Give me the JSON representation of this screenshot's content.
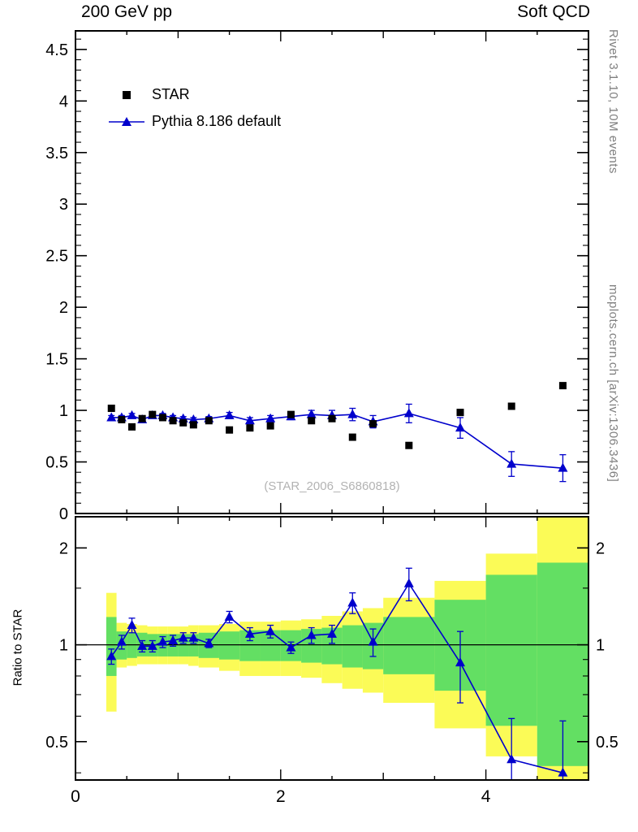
{
  "header": {
    "left_label": "200 GeV pp",
    "right_label": "Soft QCD"
  },
  "side_labels": {
    "rivet": "Rivet 3.1.10,  10M events",
    "mcplots": "mcplots.cern.ch [arXiv:1306.3436]"
  },
  "watermark": "(STAR_2006_S6860818)",
  "ratio_axis_label": "Ratio to STAR",
  "legend": {
    "items": [
      {
        "label": "STAR",
        "marker": "black-square"
      },
      {
        "label": "Pythia 8.186 default",
        "marker": "blue-triangle-line"
      }
    ]
  },
  "colors": {
    "star": "#000000",
    "pythia": "#0000cc",
    "band_yellow": "#fbfb57",
    "band_green": "#63df63",
    "reference_line": "#000000",
    "frame": "#000000",
    "watermark_text": "#b3b3b3",
    "side_text": "#808080"
  },
  "chart_data": [
    {
      "type": "scatter",
      "panel": "main",
      "xlim": [
        0,
        5
      ],
      "ylim": [
        0,
        4.68
      ],
      "xticks": [
        0,
        2,
        4
      ],
      "xtick_labels": [
        "0",
        "2",
        "4"
      ],
      "yticks": [
        0,
        0.5,
        1,
        1.5,
        2,
        2.5,
        3,
        3.5,
        4,
        4.5
      ],
      "ytick_labels": [
        "0",
        "0.5",
        "1",
        "1.5",
        "2",
        "2.5",
        "3",
        "3.5",
        "4",
        "4.5"
      ],
      "x": [
        0.35,
        0.45,
        0.55,
        0.65,
        0.75,
        0.85,
        0.95,
        1.05,
        1.15,
        1.3,
        1.5,
        1.7,
        1.9,
        2.1,
        2.3,
        2.5,
        2.7,
        2.9,
        3.25,
        3.75,
        4.25,
        4.75
      ],
      "series": [
        {
          "name": "STAR",
          "marker": "square",
          "color": "#000000",
          "values": [
            1.02,
            0.91,
            0.84,
            0.92,
            0.96,
            0.93,
            0.9,
            0.88,
            0.86,
            0.9,
            0.81,
            0.83,
            0.85,
            0.96,
            0.9,
            0.92,
            0.74,
            0.87,
            0.66,
            0.98,
            1.04,
            1.24
          ]
        },
        {
          "name": "Pythia 8.186 default",
          "marker": "triangle",
          "line": true,
          "color": "#0000cc",
          "values": [
            0.93,
            0.93,
            0.95,
            0.91,
            0.95,
            0.95,
            0.93,
            0.92,
            0.91,
            0.92,
            0.95,
            0.9,
            0.92,
            0.94,
            0.96,
            0.95,
            0.96,
            0.89,
            0.97,
            0.83,
            0.48,
            0.44
          ],
          "errors": [
            0.02,
            0.02,
            0.02,
            0.02,
            0.02,
            0.02,
            0.02,
            0.02,
            0.02,
            0.02,
            0.03,
            0.03,
            0.03,
            0.03,
            0.04,
            0.05,
            0.06,
            0.06,
            0.09,
            0.1,
            0.12,
            0.13
          ]
        }
      ]
    },
    {
      "type": "ratio",
      "panel": "ratio",
      "ylabel": "Ratio to STAR",
      "yscale": "log",
      "xlim": [
        0,
        5
      ],
      "ylim": [
        0.38,
        2.5
      ],
      "xticks": [
        0,
        2,
        4
      ],
      "xtick_labels": [
        "0",
        "2",
        "4"
      ],
      "yticks": [
        0.5,
        1,
        2
      ],
      "ytick_labels": [
        "0.5",
        "1",
        "2"
      ],
      "minor_yticks": [
        0.4,
        0.6,
        0.7,
        0.8,
        0.9,
        1.5
      ],
      "reference_line": 1,
      "x": [
        0.35,
        0.45,
        0.55,
        0.65,
        0.75,
        0.85,
        0.95,
        1.05,
        1.15,
        1.3,
        1.5,
        1.7,
        1.9,
        2.1,
        2.3,
        2.5,
        2.7,
        2.9,
        3.25,
        3.75,
        4.25,
        4.75
      ],
      "values": [
        0.92,
        1.02,
        1.15,
        0.99,
        0.99,
        1.02,
        1.03,
        1.05,
        1.05,
        1.01,
        1.22,
        1.08,
        1.1,
        0.98,
        1.07,
        1.08,
        1.35,
        1.02,
        1.55,
        0.88,
        0.44,
        0.4
      ],
      "errors": [
        0.05,
        0.05,
        0.06,
        0.04,
        0.04,
        0.04,
        0.04,
        0.04,
        0.04,
        0.03,
        0.05,
        0.05,
        0.05,
        0.04,
        0.06,
        0.07,
        0.1,
        0.1,
        0.18,
        0.22,
        0.15,
        0.18
      ],
      "bands": [
        {
          "x0": 0.3,
          "x1": 0.4,
          "yellow": [
            0.62,
            1.45
          ],
          "green": [
            0.8,
            1.22
          ]
        },
        {
          "x0": 0.4,
          "x1": 0.5,
          "yellow": [
            0.85,
            1.17
          ],
          "green": [
            0.9,
            1.1
          ]
        },
        {
          "x0": 0.5,
          "x1": 0.6,
          "yellow": [
            0.86,
            1.16
          ],
          "green": [
            0.91,
            1.09
          ]
        },
        {
          "x0": 0.6,
          "x1": 0.7,
          "yellow": [
            0.87,
            1.15
          ],
          "green": [
            0.92,
            1.09
          ]
        },
        {
          "x0": 0.7,
          "x1": 0.8,
          "yellow": [
            0.87,
            1.14
          ],
          "green": [
            0.92,
            1.08
          ]
        },
        {
          "x0": 0.8,
          "x1": 0.9,
          "yellow": [
            0.87,
            1.14
          ],
          "green": [
            0.92,
            1.08
          ]
        },
        {
          "x0": 0.9,
          "x1": 1.0,
          "yellow": [
            0.87,
            1.14
          ],
          "green": [
            0.92,
            1.08
          ]
        },
        {
          "x0": 1.0,
          "x1": 1.1,
          "yellow": [
            0.87,
            1.14
          ],
          "green": [
            0.92,
            1.08
          ]
        },
        {
          "x0": 1.1,
          "x1": 1.2,
          "yellow": [
            0.86,
            1.15
          ],
          "green": [
            0.92,
            1.08
          ]
        },
        {
          "x0": 1.2,
          "x1": 1.4,
          "yellow": [
            0.85,
            1.15
          ],
          "green": [
            0.91,
            1.09
          ]
        },
        {
          "x0": 1.4,
          "x1": 1.6,
          "yellow": [
            0.83,
            1.16
          ],
          "green": [
            0.9,
            1.1
          ]
        },
        {
          "x0": 1.6,
          "x1": 1.8,
          "yellow": [
            0.8,
            1.18
          ],
          "green": [
            0.89,
            1.11
          ]
        },
        {
          "x0": 1.8,
          "x1": 2.0,
          "yellow": [
            0.8,
            1.18
          ],
          "green": [
            0.89,
            1.11
          ]
        },
        {
          "x0": 2.0,
          "x1": 2.2,
          "yellow": [
            0.8,
            1.19
          ],
          "green": [
            0.89,
            1.11
          ]
        },
        {
          "x0": 2.2,
          "x1": 2.4,
          "yellow": [
            0.79,
            1.2
          ],
          "green": [
            0.88,
            1.12
          ]
        },
        {
          "x0": 2.4,
          "x1": 2.6,
          "yellow": [
            0.76,
            1.23
          ],
          "green": [
            0.87,
            1.13
          ]
        },
        {
          "x0": 2.6,
          "x1": 2.8,
          "yellow": [
            0.73,
            1.27
          ],
          "green": [
            0.85,
            1.15
          ]
        },
        {
          "x0": 2.8,
          "x1": 3.0,
          "yellow": [
            0.71,
            1.3
          ],
          "green": [
            0.84,
            1.17
          ]
        },
        {
          "x0": 3.0,
          "x1": 3.5,
          "yellow": [
            0.66,
            1.4
          ],
          "green": [
            0.81,
            1.22
          ]
        },
        {
          "x0": 3.5,
          "x1": 4.0,
          "yellow": [
            0.55,
            1.58
          ],
          "green": [
            0.72,
            1.38
          ]
        },
        {
          "x0": 4.0,
          "x1": 4.5,
          "yellow": [
            0.45,
            1.92
          ],
          "green": [
            0.56,
            1.65
          ]
        },
        {
          "x0": 4.5,
          "x1": 5.0,
          "yellow": [
            0.38,
            2.5
          ],
          "green": [
            0.42,
            1.8
          ]
        }
      ]
    }
  ]
}
